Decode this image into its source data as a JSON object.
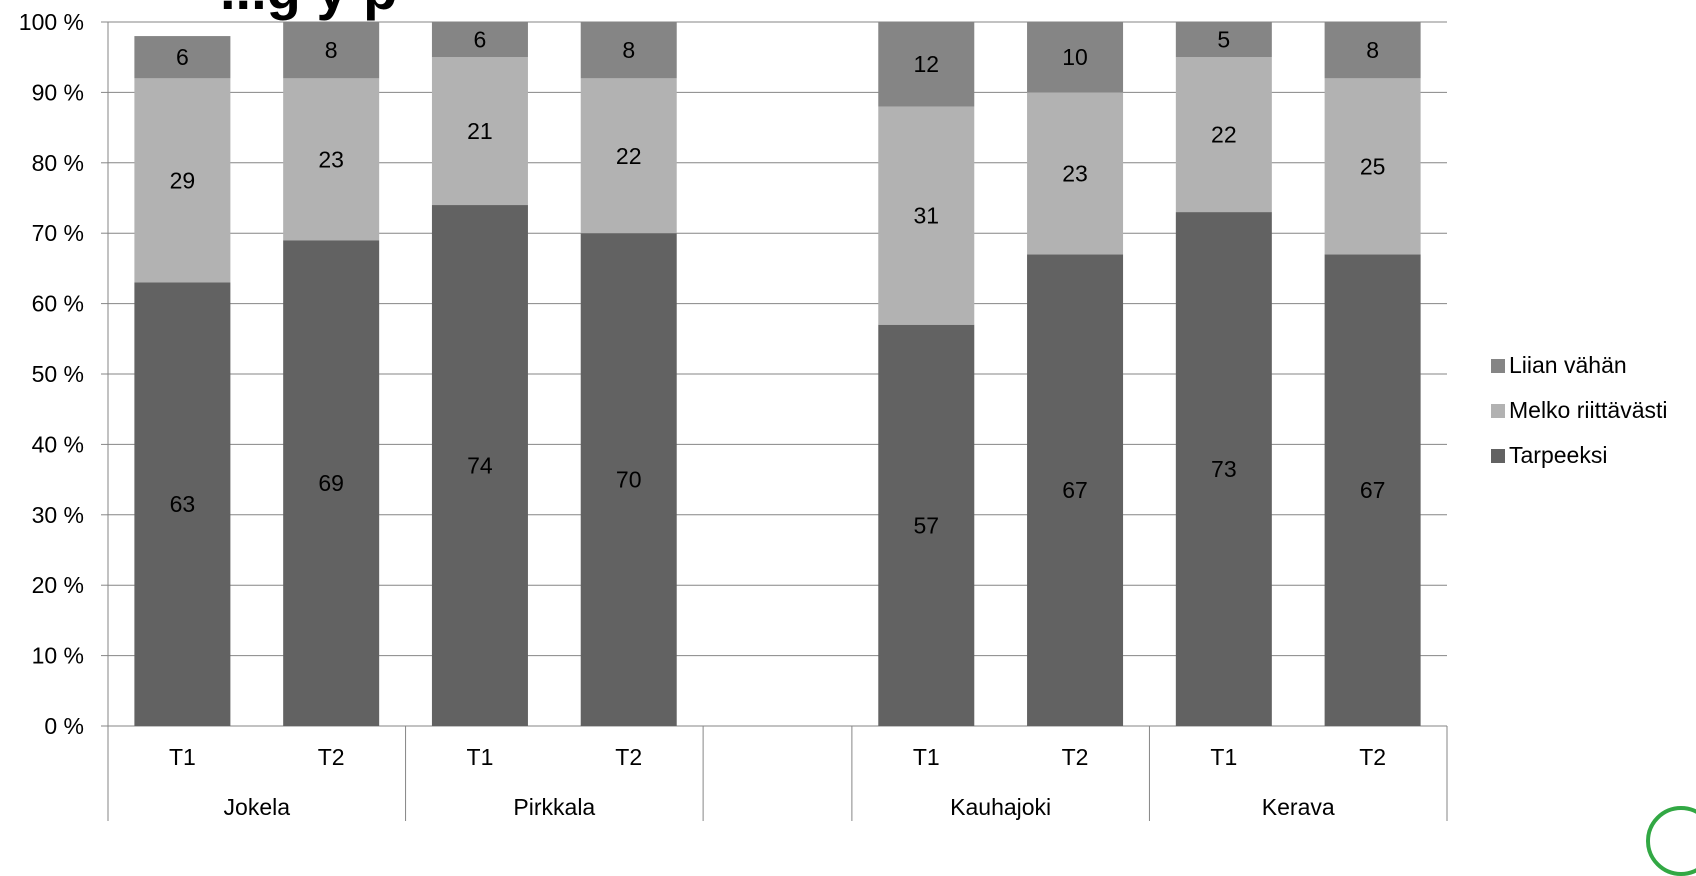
{
  "chart_data": {
    "type": "bar",
    "stacked": true,
    "percent_axis": true,
    "title_fragment": "...g y p",
    "y_ticks": [
      "0 %",
      "10 %",
      "20 %",
      "30 %",
      "40 %",
      "50 %",
      "60 %",
      "70 %",
      "80 %",
      "90 %",
      "100 %"
    ],
    "ylim": [
      0,
      100
    ],
    "grid": true,
    "legend_position": "right",
    "groups": [
      {
        "label": "Jokela",
        "categories": [
          "T1",
          "T2"
        ]
      },
      {
        "label": "Pirkkala",
        "categories": [
          "T1",
          "T2"
        ]
      },
      {
        "label": "",
        "categories": [
          ""
        ]
      },
      {
        "label": "Kauhajoki",
        "categories": [
          "T1",
          "T2"
        ]
      },
      {
        "label": "Kerava",
        "categories": [
          "T1",
          "T2"
        ]
      }
    ],
    "x_ticks": [
      "T1",
      "T2",
      "T1",
      "T2",
      "",
      "T1",
      "T2",
      "T1",
      "T2"
    ],
    "group_labels": [
      "Jokela",
      "Pirkkala",
      "",
      "Kauhajoki",
      "Kerava"
    ],
    "series": [
      {
        "name": "Tarpeeksi",
        "color": "#626262",
        "values": [
          63,
          69,
          74,
          70,
          null,
          57,
          67,
          73,
          67
        ]
      },
      {
        "name": "Melko riittävästi",
        "color": "#b2b2b2",
        "values": [
          29,
          23,
          21,
          22,
          null,
          31,
          23,
          22,
          25
        ]
      },
      {
        "name": "Liian vähän",
        "color": "#858585",
        "values": [
          6,
          8,
          6,
          8,
          null,
          12,
          10,
          5,
          8
        ]
      }
    ],
    "legend": [
      {
        "name": "Liian vähän",
        "color": "#858585"
      },
      {
        "name": "Melko riittävästi",
        "color": "#b2b2b2"
      },
      {
        "name": "Tarpeeksi",
        "color": "#626262"
      }
    ],
    "colors": {
      "grid": "#868686",
      "axis": "#868686",
      "text": "#000000"
    }
  }
}
